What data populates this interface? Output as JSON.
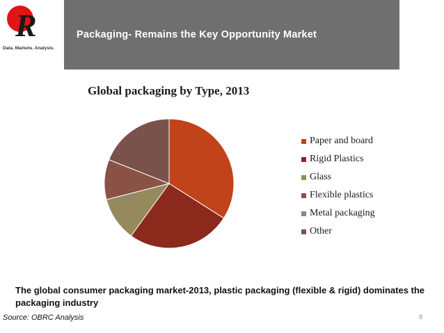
{
  "logo": {
    "letter": "R",
    "tagline": "Data. Markets. Analysis."
  },
  "header": {
    "title": "Packaging- Remains the Key Opportunity Market"
  },
  "chart_data": {
    "type": "pie",
    "title": "Global packaging by Type, 2013",
    "legend_position": "right",
    "categories": [
      "Paper and board",
      "Rigid Plastics",
      "Glass",
      "Flexible plastics",
      "Metal packaging",
      "Other"
    ],
    "values": [
      34,
      26,
      11,
      10,
      0,
      19
    ],
    "colors": [
      "#c0431a",
      "#8b2a1c",
      "#948a5e",
      "#8a5145",
      "#888888",
      "#7a524c"
    ]
  },
  "caption": {
    "text": "The global consumer packaging market-2013, plastic packaging (flexible & rigid) dominates the packaging industry"
  },
  "footer": {
    "source": "Source: OBRC Analysis",
    "page_number": "8"
  }
}
